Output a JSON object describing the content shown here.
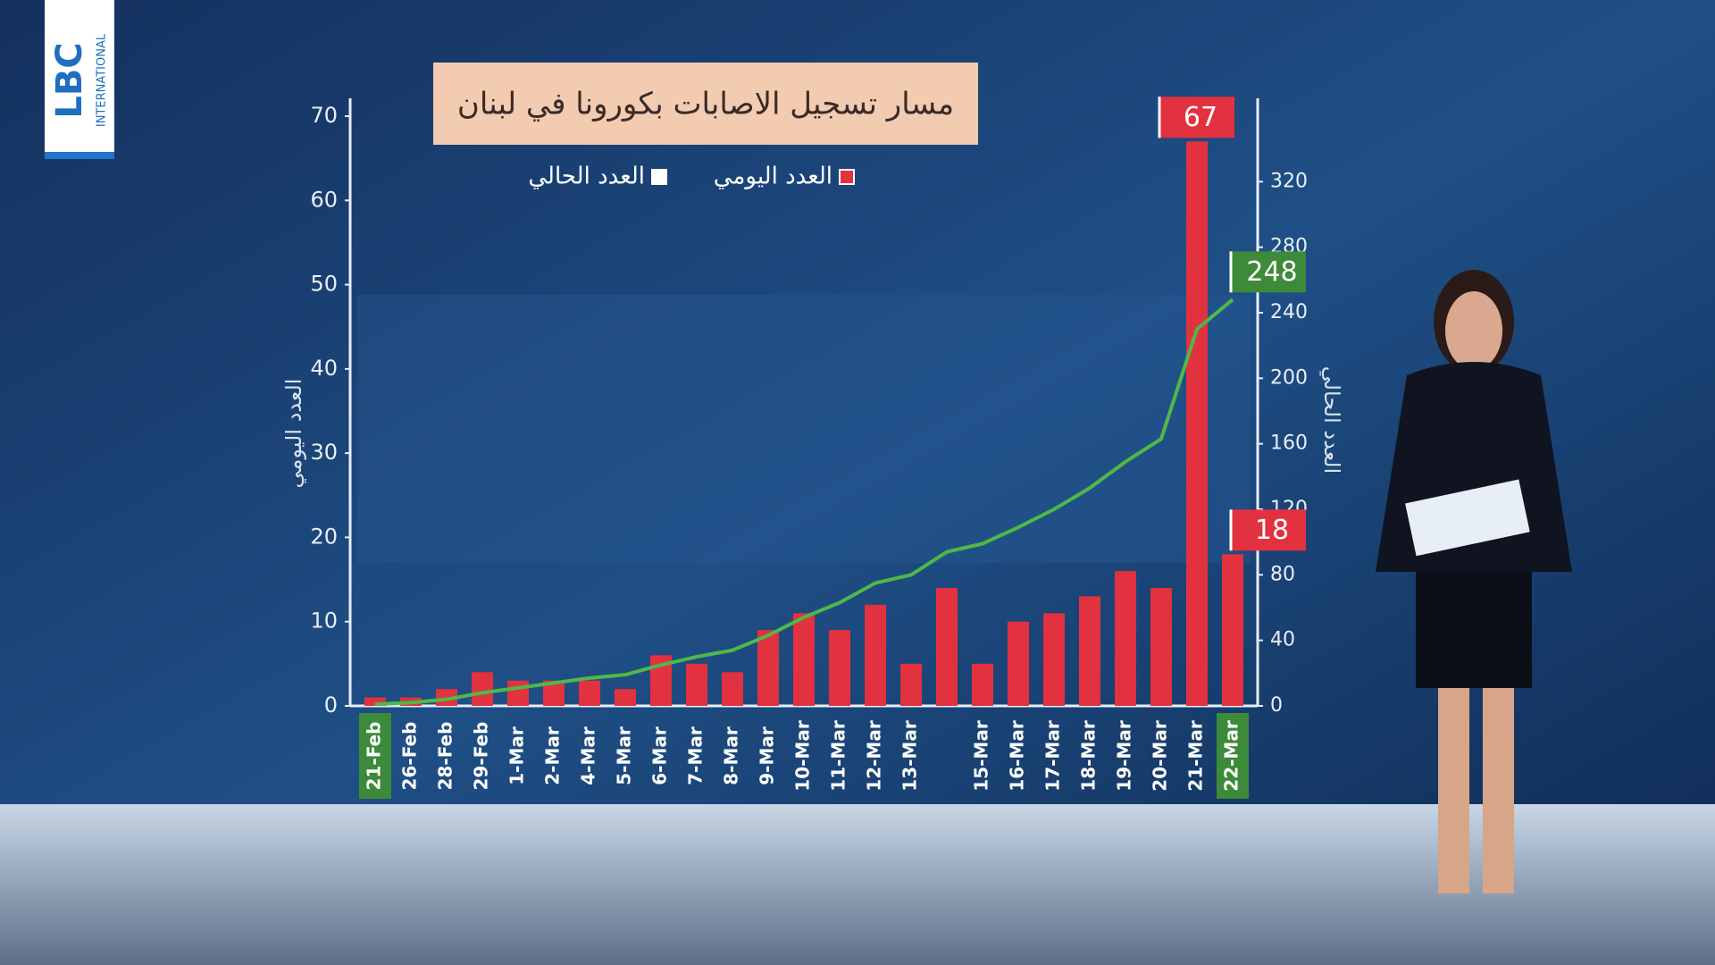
{
  "logo": {
    "text": "LBC",
    "subtext": "INTERNATIONAL"
  },
  "chart_data": {
    "type": "bar-line",
    "title": "مسار تسجيل الاصابات بكورونا في لبنان",
    "y_label": "العدد اليومي",
    "y2_label": "العدد الحالي",
    "categories": [
      "21-Feb",
      "26-Feb",
      "28-Feb",
      "29-Feb",
      "1-Mar",
      "2-Mar",
      "4-Mar",
      "5-Mar",
      "6-Mar",
      "7-Mar",
      "8-Mar",
      "9-Mar",
      "10-Mar",
      "11-Mar",
      "12-Mar",
      "13-Mar",
      null,
      "15-Mar",
      "16-Mar",
      "17-Mar",
      "18-Mar",
      "19-Mar",
      "20-Mar",
      "21-Mar",
      "22-Mar"
    ],
    "series": [
      {
        "name": "العدد اليومي",
        "type": "bar",
        "color": "#e2313f",
        "values": [
          1,
          1,
          2,
          4,
          3,
          3,
          3,
          2,
          6,
          5,
          4,
          9,
          11,
          9,
          12,
          5,
          14,
          5,
          10,
          11,
          13,
          16,
          14,
          67,
          18
        ]
      },
      {
        "name": "العدد الحالي",
        "type": "line",
        "axis": "y2",
        "color": "#4fb848",
        "values": [
          1,
          2,
          4,
          8,
          11,
          14,
          17,
          19,
          25,
          30,
          34,
          43,
          54,
          63,
          75,
          80,
          94,
          99,
          109,
          120,
          133,
          149,
          163,
          230,
          248
        ]
      }
    ],
    "ylim": [
      0,
      70
    ],
    "yticks": [
      0,
      10,
      20,
      30,
      40,
      50,
      60,
      70
    ],
    "y2lim": [
      0,
      360
    ],
    "y2ticks": [
      0,
      40,
      80,
      120,
      160,
      200,
      240,
      280,
      320
    ],
    "legend": "top"
  }
}
